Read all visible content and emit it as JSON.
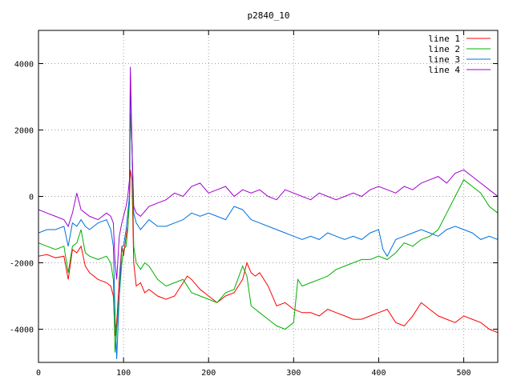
{
  "chart_data": {
    "type": "line",
    "title": "p2840_10",
    "xlabel": "",
    "ylabel": "",
    "xlim": [
      0,
      540
    ],
    "ylim": [
      -5000,
      5000
    ],
    "xticks": [
      0,
      100,
      200,
      300,
      400,
      500
    ],
    "yticks": [
      -4000,
      -2000,
      0,
      2000,
      4000
    ],
    "grid": true,
    "legend_position": "top-right",
    "series": [
      {
        "name": "line 1",
        "color": "#ff0000",
        "x": [
          0,
          10,
          20,
          30,
          35,
          40,
          45,
          50,
          55,
          60,
          70,
          80,
          85,
          88,
          90,
          92,
          95,
          98,
          100,
          103,
          105,
          107,
          108,
          110,
          112,
          115,
          120,
          125,
          130,
          140,
          150,
          160,
          170,
          175,
          180,
          190,
          200,
          210,
          220,
          230,
          240,
          245,
          250,
          255,
          260,
          270,
          280,
          290,
          300,
          310,
          320,
          330,
          340,
          350,
          360,
          370,
          380,
          390,
          400,
          410,
          420,
          430,
          440,
          450,
          460,
          470,
          480,
          490,
          500,
          510,
          520,
          530,
          540
        ],
        "y": [
          -1800,
          -1750,
          -1850,
          -1800,
          -2500,
          -1600,
          -1700,
          -1500,
          -2100,
          -2300,
          -2500,
          -2600,
          -2700,
          -3000,
          -4200,
          -3800,
          -2500,
          -1500,
          -1800,
          -1200,
          -900,
          -200,
          800,
          500,
          -2000,
          -2700,
          -2600,
          -2900,
          -2800,
          -3000,
          -3100,
          -3000,
          -2600,
          -2400,
          -2500,
          -2800,
          -3000,
          -3200,
          -3000,
          -2900,
          -2500,
          -2000,
          -2300,
          -2400,
          -2300,
          -2700,
          -3300,
          -3200,
          -3400,
          -3500,
          -3500,
          -3600,
          -3400,
          -3500,
          -3600,
          -3700,
          -3700,
          -3600,
          -3500,
          -3400,
          -3800,
          -3900,
          -3600,
          -3200,
          -3400,
          -3600,
          -3700,
          -3800,
          -3600,
          -3700,
          -3800,
          -4000,
          -4100
        ]
      },
      {
        "name": "line 2",
        "color": "#00b000",
        "x": [
          0,
          10,
          20,
          30,
          35,
          40,
          45,
          50,
          55,
          60,
          70,
          80,
          85,
          88,
          90,
          92,
          95,
          98,
          100,
          103,
          105,
          107,
          108,
          110,
          112,
          115,
          120,
          125,
          130,
          140,
          150,
          160,
          170,
          180,
          190,
          200,
          210,
          220,
          230,
          240,
          245,
          250,
          260,
          270,
          280,
          290,
          300,
          305,
          310,
          320,
          330,
          340,
          350,
          360,
          370,
          380,
          390,
          400,
          410,
          420,
          430,
          440,
          450,
          460,
          470,
          480,
          490,
          500,
          510,
          520,
          530,
          540
        ],
        "y": [
          -1400,
          -1500,
          -1600,
          -1500,
          -2300,
          -1500,
          -1400,
          -1000,
          -1700,
          -1800,
          -1900,
          -1800,
          -2000,
          -2500,
          -4700,
          -4000,
          -3000,
          -2000,
          -1600,
          -1500,
          -1000,
          0,
          2500,
          1500,
          -1500,
          -2000,
          -2200,
          -2000,
          -2100,
          -2500,
          -2700,
          -2600,
          -2500,
          -2900,
          -3000,
          -3100,
          -3200,
          -2900,
          -2800,
          -2100,
          -2400,
          -3300,
          -3500,
          -3700,
          -3900,
          -4000,
          -3800,
          -2500,
          -2700,
          -2600,
          -2500,
          -2400,
          -2200,
          -2100,
          -2000,
          -1900,
          -1900,
          -1800,
          -1900,
          -1700,
          -1400,
          -1500,
          -1300,
          -1200,
          -1000,
          -500,
          0,
          500,
          300,
          100,
          -300,
          -500
        ]
      },
      {
        "name": "line 3",
        "color": "#0070dd",
        "x": [
          0,
          10,
          20,
          30,
          35,
          40,
          45,
          50,
          55,
          60,
          70,
          80,
          85,
          88,
          90,
          92,
          95,
          98,
          100,
          103,
          105,
          107,
          108,
          110,
          112,
          115,
          120,
          130,
          140,
          150,
          160,
          170,
          180,
          190,
          200,
          210,
          220,
          230,
          240,
          250,
          260,
          270,
          280,
          290,
          300,
          310,
          320,
          330,
          340,
          350,
          360,
          370,
          380,
          390,
          400,
          405,
          410,
          420,
          430,
          440,
          450,
          460,
          470,
          480,
          490,
          500,
          510,
          520,
          530,
          540
        ],
        "y": [
          -1100,
          -1000,
          -1000,
          -900,
          -1500,
          -800,
          -900,
          -700,
          -900,
          -1000,
          -800,
          -700,
          -1000,
          -1500,
          -3500,
          -4900,
          -3000,
          -1500,
          -1500,
          -1000,
          -500,
          0,
          3500,
          1500,
          -500,
          -800,
          -1000,
          -700,
          -900,
          -900,
          -800,
          -700,
          -500,
          -600,
          -500,
          -600,
          -700,
          -300,
          -400,
          -700,
          -800,
          -900,
          -1000,
          -1100,
          -1200,
          -1300,
          -1200,
          -1300,
          -1100,
          -1200,
          -1300,
          -1200,
          -1300,
          -1100,
          -1000,
          -1600,
          -1800,
          -1300,
          -1200,
          -1100,
          -1000,
          -1100,
          -1200,
          -1000,
          -900,
          -1000,
          -1100,
          -1300,
          -1200,
          -1300
        ]
      },
      {
        "name": "line 4",
        "color": "#a000d0",
        "x": [
          0,
          10,
          20,
          30,
          35,
          40,
          45,
          50,
          55,
          60,
          70,
          80,
          85,
          88,
          90,
          92,
          95,
          98,
          100,
          103,
          105,
          107,
          108,
          110,
          112,
          115,
          120,
          130,
          140,
          150,
          160,
          170,
          180,
          190,
          200,
          210,
          220,
          230,
          240,
          250,
          260,
          270,
          280,
          290,
          300,
          310,
          320,
          330,
          340,
          350,
          360,
          370,
          380,
          390,
          400,
          410,
          420,
          430,
          440,
          450,
          460,
          470,
          480,
          490,
          500,
          510,
          520,
          530,
          540
        ],
        "y": [
          -400,
          -500,
          -600,
          -700,
          -900,
          -500,
          100,
          -400,
          -500,
          -600,
          -700,
          -500,
          -600,
          -800,
          -2000,
          -2500,
          -1200,
          -800,
          -600,
          -300,
          0,
          500,
          3900,
          1500,
          -300,
          -500,
          -600,
          -300,
          -200,
          -100,
          100,
          0,
          300,
          400,
          100,
          200,
          300,
          0,
          200,
          100,
          200,
          0,
          -100,
          200,
          100,
          0,
          -100,
          100,
          0,
          -100,
          0,
          100,
          0,
          200,
          300,
          200,
          100,
          300,
          200,
          400,
          500,
          600,
          400,
          700,
          800,
          600,
          400,
          200,
          0
        ]
      }
    ]
  }
}
